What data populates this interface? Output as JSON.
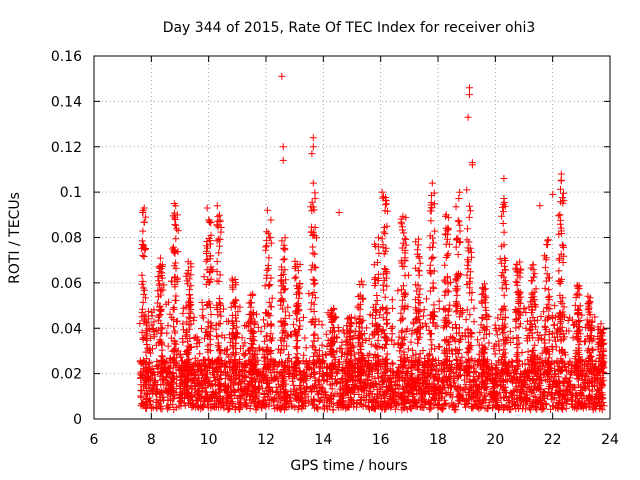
{
  "chart_data": {
    "type": "scatter",
    "title": "Day 344 of 2015, Rate Of TEC Index for receiver ohi3",
    "xlabel": "GPS time / hours",
    "ylabel": "ROTI / TECUs",
    "xlim": [
      6,
      24
    ],
    "ylim": [
      0,
      0.16
    ],
    "xticks": [
      6,
      8,
      10,
      12,
      14,
      16,
      18,
      20,
      22,
      24
    ],
    "yticks": [
      0,
      0.02,
      0.04,
      0.06,
      0.08,
      0.1,
      0.12,
      0.14,
      0.16
    ],
    "ytick_labels": [
      "0",
      "0.02",
      "0.04",
      "0.06",
      "0.08",
      "0.1",
      "0.12",
      "0.14",
      "0.16"
    ],
    "grid": true,
    "marker": "+",
    "color": "#ff0000",
    "data_range_hours": [
      7.6,
      23.8
    ],
    "outliers": [
      {
        "x": 12.55,
        "y": 0.151
      },
      {
        "x": 19.1,
        "y": 0.146
      },
      {
        "x": 19.1,
        "y": 0.143
      },
      {
        "x": 19.05,
        "y": 0.133
      },
      {
        "x": 13.65,
        "y": 0.124
      },
      {
        "x": 13.65,
        "y": 0.12
      },
      {
        "x": 12.6,
        "y": 0.12
      },
      {
        "x": 13.6,
        "y": 0.117
      },
      {
        "x": 12.6,
        "y": 0.114
      },
      {
        "x": 19.2,
        "y": 0.113
      },
      {
        "x": 19.2,
        "y": 0.112
      },
      {
        "x": 22.3,
        "y": 0.108
      },
      {
        "x": 22.3,
        "y": 0.105
      },
      {
        "x": 20.3,
        "y": 0.106
      },
      {
        "x": 17.8,
        "y": 0.104
      },
      {
        "x": 13.65,
        "y": 0.104
      },
      {
        "x": 22.0,
        "y": 0.099
      },
      {
        "x": 19.0,
        "y": 0.101
      },
      {
        "x": 21.55,
        "y": 0.094
      },
      {
        "x": 8.8,
        "y": 0.095
      },
      {
        "x": 8.85,
        "y": 0.094
      },
      {
        "x": 10.3,
        "y": 0.094
      },
      {
        "x": 9.95,
        "y": 0.093
      },
      {
        "x": 16.05,
        "y": 0.1
      },
      {
        "x": 16.1,
        "y": 0.098
      },
      {
        "x": 7.75,
        "y": 0.093
      },
      {
        "x": 7.7,
        "y": 0.091
      },
      {
        "x": 7.8,
        "y": 0.089
      },
      {
        "x": 12.05,
        "y": 0.092
      },
      {
        "x": 14.55,
        "y": 0.091
      }
    ],
    "peaks": [
      {
        "x": 7.75,
        "y": 0.093
      },
      {
        "x": 8.3,
        "y": 0.071
      },
      {
        "x": 8.85,
        "y": 0.092
      },
      {
        "x": 9.3,
        "y": 0.07
      },
      {
        "x": 10.0,
        "y": 0.088
      },
      {
        "x": 10.35,
        "y": 0.09
      },
      {
        "x": 10.9,
        "y": 0.062
      },
      {
        "x": 11.5,
        "y": 0.055
      },
      {
        "x": 12.1,
        "y": 0.09
      },
      {
        "x": 12.6,
        "y": 0.08
      },
      {
        "x": 13.1,
        "y": 0.07
      },
      {
        "x": 13.65,
        "y": 0.1
      },
      {
        "x": 14.3,
        "y": 0.05
      },
      {
        "x": 14.9,
        "y": 0.045
      },
      {
        "x": 15.3,
        "y": 0.06
      },
      {
        "x": 15.85,
        "y": 0.08
      },
      {
        "x": 16.15,
        "y": 0.098
      },
      {
        "x": 16.8,
        "y": 0.09
      },
      {
        "x": 17.3,
        "y": 0.08
      },
      {
        "x": 17.8,
        "y": 0.1
      },
      {
        "x": 18.3,
        "y": 0.09
      },
      {
        "x": 18.7,
        "y": 0.1
      },
      {
        "x": 19.1,
        "y": 0.095
      },
      {
        "x": 19.6,
        "y": 0.06
      },
      {
        "x": 20.3,
        "y": 0.1
      },
      {
        "x": 20.8,
        "y": 0.07
      },
      {
        "x": 21.3,
        "y": 0.07
      },
      {
        "x": 21.8,
        "y": 0.08
      },
      {
        "x": 22.3,
        "y": 0.104
      },
      {
        "x": 22.9,
        "y": 0.06
      },
      {
        "x": 23.3,
        "y": 0.055
      },
      {
        "x": 23.7,
        "y": 0.04
      }
    ]
  }
}
